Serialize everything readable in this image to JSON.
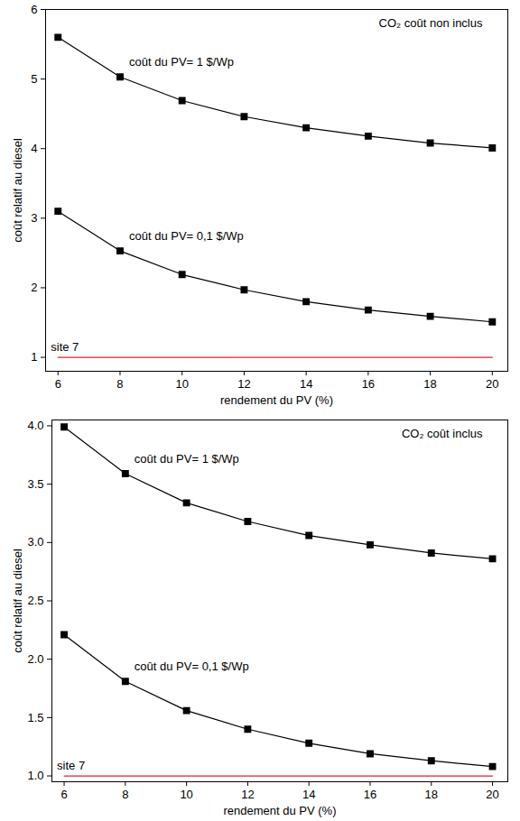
{
  "chart_data": [
    {
      "type": "line",
      "title": "CO₂ coût non inclus",
      "xlabel": "rendement du PV (%)",
      "ylabel": "coût relatif au diesel",
      "x": [
        6,
        8,
        10,
        12,
        14,
        16,
        18,
        20
      ],
      "xlim": [
        5.6,
        20.5
      ],
      "xticks": [
        6,
        8,
        10,
        12,
        14,
        16,
        18,
        20
      ],
      "ylim": [
        0.8,
        6
      ],
      "yticks": [
        1,
        2,
        3,
        4,
        5,
        6
      ],
      "grid": false,
      "series": [
        {
          "name": "coût du PV= 1 $/Wp",
          "color": "#000000",
          "marker": "square",
          "line_style": "solid",
          "values": [
            5.6,
            5.03,
            4.69,
            4.46,
            4.3,
            4.18,
            4.08,
            4.01
          ]
        },
        {
          "name": "coût du PV= 0,1 $/Wp",
          "color": "#000000",
          "marker": "square",
          "line_style": "solid",
          "values": [
            3.1,
            2.53,
            2.19,
            1.97,
            1.8,
            1.68,
            1.59,
            1.51
          ]
        },
        {
          "name": "site 7",
          "color": "#e8202a",
          "marker": "none",
          "line_style": "solid",
          "values": [
            1,
            1,
            1,
            1,
            1,
            1,
            1,
            1
          ]
        }
      ]
    },
    {
      "type": "line",
      "title": "CO₂ coût inclus",
      "xlabel": "rendement du PV (%)",
      "ylabel": "coût relatif au diesel",
      "x": [
        6,
        8,
        10,
        12,
        14,
        16,
        18,
        20
      ],
      "xlim": [
        5.6,
        20.5
      ],
      "xticks": [
        6,
        8,
        10,
        12,
        14,
        16,
        18,
        20
      ],
      "ylim": [
        0.95,
        4.05
      ],
      "yticks": [
        {
          "value": 1,
          "label": "1.0"
        },
        {
          "value": 1.5,
          "label": "1.5"
        },
        {
          "value": 2,
          "label": "2.0"
        },
        {
          "value": 2.5,
          "label": "2.5"
        },
        {
          "value": 3,
          "label": "3.0"
        },
        {
          "value": 3.5,
          "label": "3.5"
        },
        {
          "value": 4,
          "label": "4.0"
        }
      ],
      "grid": false,
      "series": [
        {
          "name": "coût du PV= 1 $/Wp",
          "color": "#000000",
          "marker": "square",
          "line_style": "solid",
          "values": [
            3.99,
            3.59,
            3.34,
            3.18,
            3.06,
            2.98,
            2.91,
            2.86
          ]
        },
        {
          "name": "coût du PV= 0,1 $/Wp",
          "color": "#000000",
          "marker": "square",
          "line_style": "solid",
          "values": [
            2.21,
            1.81,
            1.56,
            1.4,
            1.28,
            1.19,
            1.13,
            1.08
          ]
        },
        {
          "name": "site 7",
          "color": "#e8202a",
          "marker": "none",
          "line_style": "solid",
          "values": [
            1,
            1,
            1,
            1,
            1,
            1,
            1,
            1
          ]
        }
      ]
    }
  ]
}
